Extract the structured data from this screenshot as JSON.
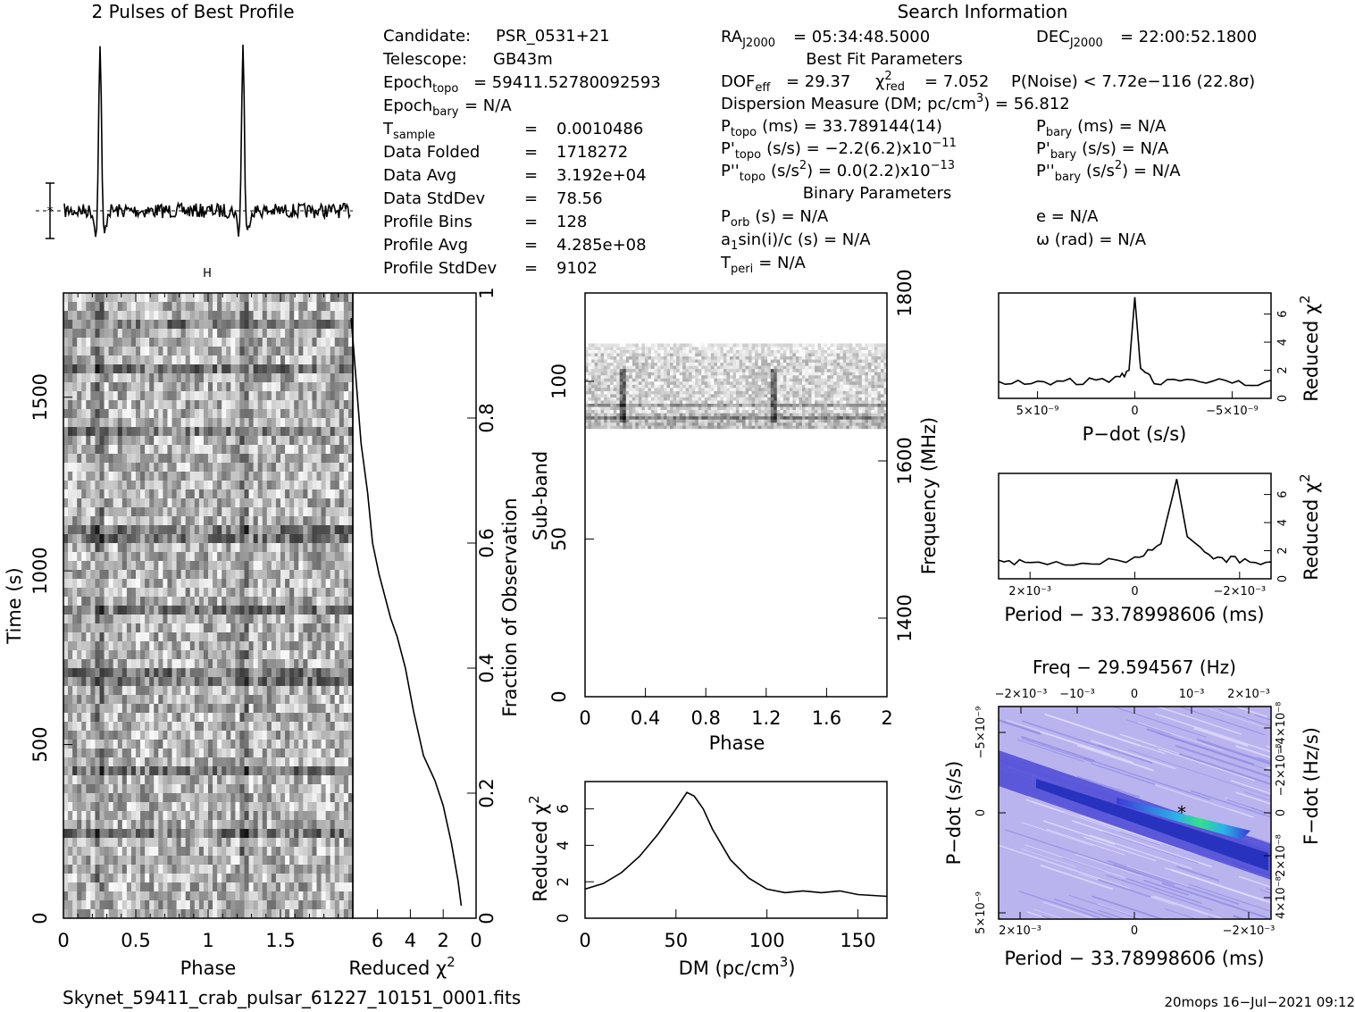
{
  "profile": {
    "title": "2 Pulses of Best Profile"
  },
  "info": {
    "search_title": "Search Information",
    "best_fit_title": "Best Fit Parameters",
    "binary_title": "Binary Parameters",
    "left": [
      {
        "label": "Candidate:",
        "value": "PSR_0531+21"
      },
      {
        "label": "Telescope:",
        "value": "GB43m"
      },
      {
        "label": "Epoch",
        "sub": "topo",
        "value": "= 59411.52780092593"
      },
      {
        "label": "Epoch",
        "sub": "bary",
        "value": "= N/A"
      },
      {
        "label": "T",
        "sub": "sample",
        "value": "0.0010486"
      },
      {
        "label": "Data Folded",
        "value": "1718272"
      },
      {
        "label": "Data Avg",
        "value": "3.192e+04"
      },
      {
        "label": "Data StdDev",
        "value": "78.56"
      },
      {
        "label": "Profile Bins",
        "value": "128"
      },
      {
        "label": "Profile Avg",
        "value": "4.285e+08"
      },
      {
        "label": "Profile StdDev",
        "value": "9102"
      }
    ],
    "ra": "= 05:34:48.5000",
    "dec": "= 22:00:52.1800",
    "dof": "= 29.37",
    "chi2": "= 7.052",
    "pnoise": "P(Noise) < 7.72e−116   (22.8σ)",
    "dm_line": "Dispersion Measure (DM; pc/cm",
    "dm_value": ") = 56.812",
    "ptopo": "(ms) =  33.789144(14)",
    "pbary": "(ms) = N/A",
    "pdtopo": "(s/s) = −2.2(6.2)x10",
    "pdtopo_exp": "−11",
    "pdbary": "(s/s) = N/A",
    "pddtopo": "= 0.0(2.2)x10",
    "pddtopo_exp": "−13",
    "pddbary": "= N/A",
    "porb": "(s) = N/A",
    "a1": "sin(i)/c (s) = N/A",
    "tperi": "= N/A",
    "e": "e = N/A",
    "omega": "ω (rad) = N/A"
  },
  "footer": {
    "filename": "Skynet_59411_crab_pulsar_61227_10151_0001.fits",
    "stamp": "20mops  16−Jul−2021 09:12"
  },
  "chart_data": [
    {
      "type": "line",
      "title": "2 Pulses of Best Profile",
      "xlabel": "",
      "ylabel": "",
      "x": [
        0.0,
        0.25,
        0.28,
        0.5,
        1.0,
        1.25,
        1.28,
        1.5,
        2.0
      ],
      "y": [
        0.0,
        0.12,
        1.0,
        0.0,
        0.0,
        0.12,
        1.0,
        0.0,
        0.0
      ],
      "note_peaks": [
        0.25,
        1.25
      ]
    },
    {
      "type": "heatmap",
      "xlabel": "Phase",
      "ylabel": "Time (s)",
      "xticks": [
        "0",
        "0.5",
        "1",
        "1.5"
      ],
      "yticks": [
        "0",
        "500",
        "1000",
        "1500"
      ],
      "xlim": [
        0,
        2
      ],
      "ylim": [
        0,
        1800
      ],
      "pulse_phases": [
        0.25,
        1.25
      ]
    },
    {
      "type": "line",
      "xlabel": "Reduced χ²",
      "ylabel": "Fraction of Observation",
      "xticks": [
        "6",
        "4",
        "2",
        "0"
      ],
      "yticks": [
        "0",
        "0.2",
        "0.4",
        "0.6",
        "0.8",
        "1"
      ],
      "xlim": [
        7.5,
        0
      ],
      "ylim": [
        0,
        1
      ],
      "x": [
        0.9,
        1.1,
        1.5,
        2.0,
        2.5,
        3.2,
        3.8,
        4.3,
        4.8,
        5.2,
        5.9,
        6.3,
        6.6,
        7.0,
        7.3,
        7.6
      ],
      "y": [
        0.02,
        0.06,
        0.12,
        0.18,
        0.22,
        0.26,
        0.33,
        0.4,
        0.45,
        0.48,
        0.55,
        0.6,
        0.68,
        0.76,
        0.86,
        0.96
      ]
    },
    {
      "type": "heatmap",
      "xlabel": "Phase",
      "ylabel": "Sub-band",
      "y2label": "Frequency (MHz)",
      "xticks": [
        "0",
        "0.4",
        "0.8",
        "1.2",
        "1.6",
        "2"
      ],
      "yticks": [
        "0",
        "50",
        "100"
      ],
      "y2ticks": [
        "1400",
        "1600",
        "1800"
      ],
      "xlim": [
        0,
        2
      ],
      "ylim": [
        0,
        128
      ],
      "populated_subbands": [
        85,
        112
      ]
    },
    {
      "type": "line",
      "xlabel": "DM (pc/cm³)",
      "ylabel": "Reduced χ²",
      "xticks": [
        "0",
        "50",
        "100",
        "150"
      ],
      "yticks": [
        "0",
        "2",
        "4",
        "6"
      ],
      "xlim": [
        0,
        166
      ],
      "ylim": [
        0,
        7.5
      ],
      "x": [
        0,
        10,
        20,
        30,
        40,
        50,
        56,
        60,
        65,
        70,
        80,
        90,
        100,
        110,
        120,
        130,
        140,
        150,
        166
      ],
      "y": [
        1.6,
        1.9,
        2.5,
        3.4,
        4.6,
        6.0,
        6.9,
        6.7,
        6.0,
        4.9,
        3.2,
        2.2,
        1.6,
        1.4,
        1.5,
        1.4,
        1.5,
        1.3,
        1.2
      ]
    },
    {
      "type": "line",
      "xlabel": "P−dot (s/s)",
      "ylabel": "Reduced χ²",
      "xticks": [
        "5×10⁻⁹",
        "0",
        "−5×10⁻⁹"
      ],
      "yticks": [
        "0",
        "2",
        "4",
        "6"
      ],
      "x": [
        -7,
        -5,
        -3,
        -1,
        -0.3,
        0,
        0.3,
        1,
        3,
        5,
        7
      ],
      "y": [
        1.2,
        1.1,
        1.3,
        1.2,
        2.0,
        7.2,
        2.0,
        1.3,
        1.2,
        1.1,
        1.2
      ]
    },
    {
      "type": "line",
      "xlabel": "Period − 33.78998606 (ms)",
      "ylabel": "Reduced χ²",
      "xticks": [
        "2×10⁻³",
        "0",
        "−2×10⁻³"
      ],
      "yticks": [
        "0",
        "2",
        "4",
        "6"
      ],
      "x": [
        2.6,
        2.0,
        1.0,
        0.0,
        -0.5,
        -0.8,
        -1.0,
        -1.5,
        -2.0,
        -2.6
      ],
      "y": [
        1.1,
        1.2,
        1.2,
        1.4,
        2.5,
        7.1,
        3.0,
        1.5,
        1.3,
        1.2
      ]
    },
    {
      "type": "heatmap",
      "title": "Freq − 29.594567 (Hz)",
      "xlabel": "Period − 33.78998606 (ms)",
      "ylabel": "P−dot (s/s)",
      "y2label": "F−dot (Hz/s)",
      "xticks": [
        "2×10⁻³",
        "0",
        "−2×10⁻³"
      ],
      "x2ticks": [
        "−2×10⁻³",
        "−10⁻³",
        "0",
        "10⁻³",
        "2×10⁻³"
      ],
      "yticks": [
        "−5×10⁻⁹",
        "0",
        "5×10⁻⁹"
      ],
      "y2ticks": [
        "4×10⁻⁸",
        "2×10⁻⁸",
        "0",
        "−2×10⁻⁸",
        "−4×10⁻⁸"
      ],
      "best_point": {
        "x": -0.0008,
        "y": 0
      }
    }
  ]
}
